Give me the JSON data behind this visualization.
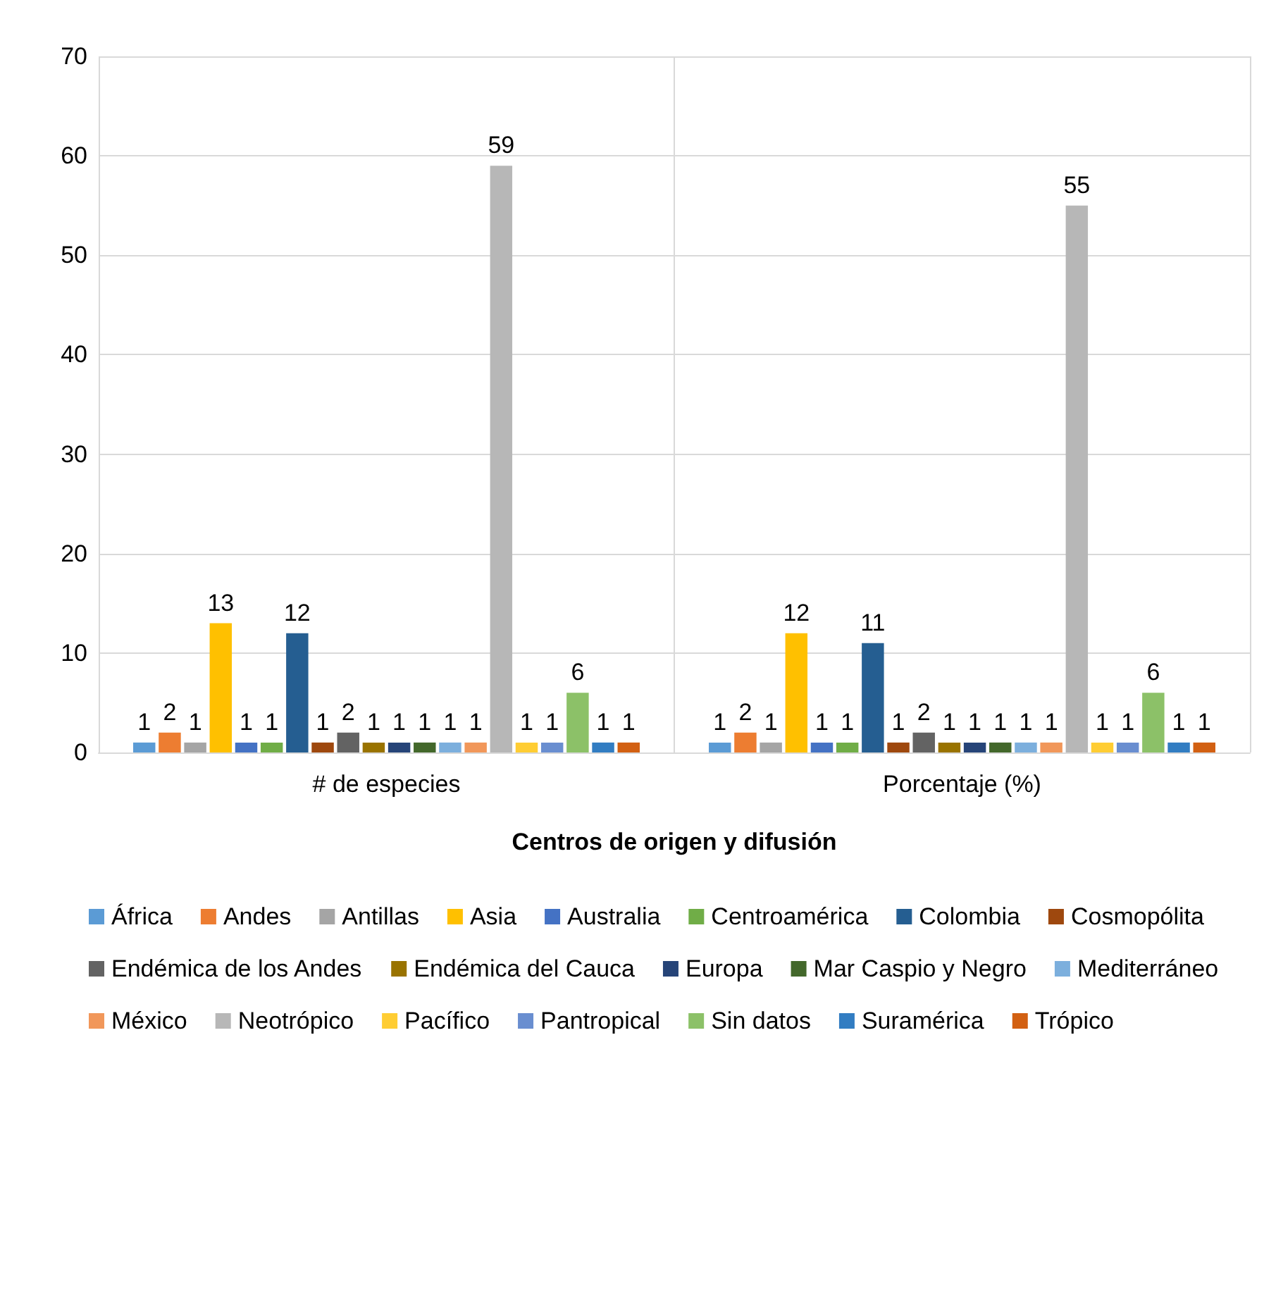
{
  "chart_data": {
    "type": "bar",
    "xlabel": "Centros de origen y difusión",
    "categories": [
      "# de especies",
      "Porcentaje (%)"
    ],
    "series": [
      {
        "name": "África",
        "color": "#5b9bd5",
        "values": [
          1,
          1
        ]
      },
      {
        "name": "Andes",
        "color": "#ed7d31",
        "values": [
          2,
          2
        ]
      },
      {
        "name": "Antillas",
        "color": "#a5a5a5",
        "values": [
          1,
          1
        ]
      },
      {
        "name": "Asia",
        "color": "#ffc000",
        "values": [
          13,
          12
        ]
      },
      {
        "name": "Australia",
        "color": "#4472c4",
        "values": [
          1,
          1
        ]
      },
      {
        "name": "Centroamérica",
        "color": "#70ad47",
        "values": [
          1,
          1
        ]
      },
      {
        "name": "Colombia",
        "color": "#255e91",
        "values": [
          12,
          11
        ]
      },
      {
        "name": "Cosmopólita",
        "color": "#9e480e",
        "values": [
          1,
          1
        ]
      },
      {
        "name": "Endémica de los Andes",
        "color": "#636363",
        "values": [
          2,
          2
        ]
      },
      {
        "name": "Endémica del Cauca",
        "color": "#997300",
        "values": [
          1,
          1
        ]
      },
      {
        "name": "Europa",
        "color": "#264478",
        "values": [
          1,
          1
        ]
      },
      {
        "name": "Mar Caspio y Negro",
        "color": "#43682b",
        "values": [
          1,
          1
        ]
      },
      {
        "name": "Mediterráneo",
        "color": "#7cafdd",
        "values": [
          1,
          1
        ]
      },
      {
        "name": "México",
        "color": "#f1975a",
        "values": [
          1,
          1
        ]
      },
      {
        "name": "Neotrópico",
        "color": "#b7b7b7",
        "values": [
          59,
          55
        ]
      },
      {
        "name": "Pacífico",
        "color": "#ffcd33",
        "values": [
          1,
          1
        ]
      },
      {
        "name": "Pantropical",
        "color": "#698ed0",
        "values": [
          1,
          1
        ]
      },
      {
        "name": "Sin datos",
        "color": "#8cc168",
        "values": [
          6,
          6
        ]
      },
      {
        "name": "Suramérica",
        "color": "#327dc2",
        "values": [
          1,
          1
        ]
      },
      {
        "name": "Trópico",
        "color": "#d26012",
        "values": [
          1,
          1
        ]
      }
    ],
    "ylim": [
      0,
      70
    ],
    "yticks": [
      0,
      10,
      20,
      30,
      40,
      50,
      60,
      70
    ],
    "grid": true,
    "legend": "bottom",
    "data_labels": true
  }
}
